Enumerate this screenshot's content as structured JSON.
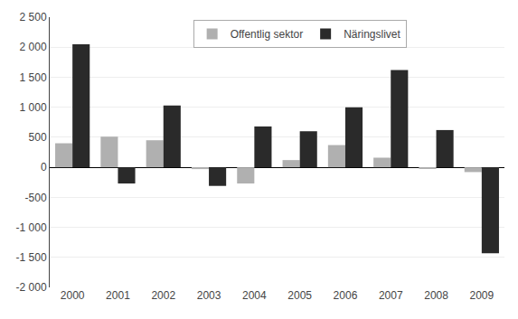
{
  "chart_data": {
    "type": "bar",
    "categories": [
      "2000",
      "2001",
      "2002",
      "2003",
      "2004",
      "2005",
      "2006",
      "2007",
      "2008",
      "2009"
    ],
    "series": [
      {
        "name": "Offentlig sektor",
        "color": "#b0b0b0",
        "values": [
          400,
          510,
          450,
          -30,
          -270,
          120,
          370,
          160,
          -20,
          -80
        ]
      },
      {
        "name": "Näringslivet",
        "color": "#2a2a2a",
        "values": [
          2050,
          -270,
          1030,
          -310,
          680,
          600,
          1000,
          1620,
          620,
          -1430
        ]
      }
    ],
    "ylim": [
      -2000,
      2500
    ],
    "yticks": [
      {
        "value": -2000,
        "label": "-2 000"
      },
      {
        "value": -1500,
        "label": "-1 500"
      },
      {
        "value": -1000,
        "label": "-1 000"
      },
      -500,
      0,
      500,
      {
        "value": 1000,
        "label": "1 000"
      },
      {
        "value": 1500,
        "label": "1 500"
      },
      {
        "value": 2000,
        "label": "2 000"
      },
      {
        "value": 2500,
        "label": "2 500"
      }
    ],
    "grid": true,
    "legend": "upper center"
  }
}
